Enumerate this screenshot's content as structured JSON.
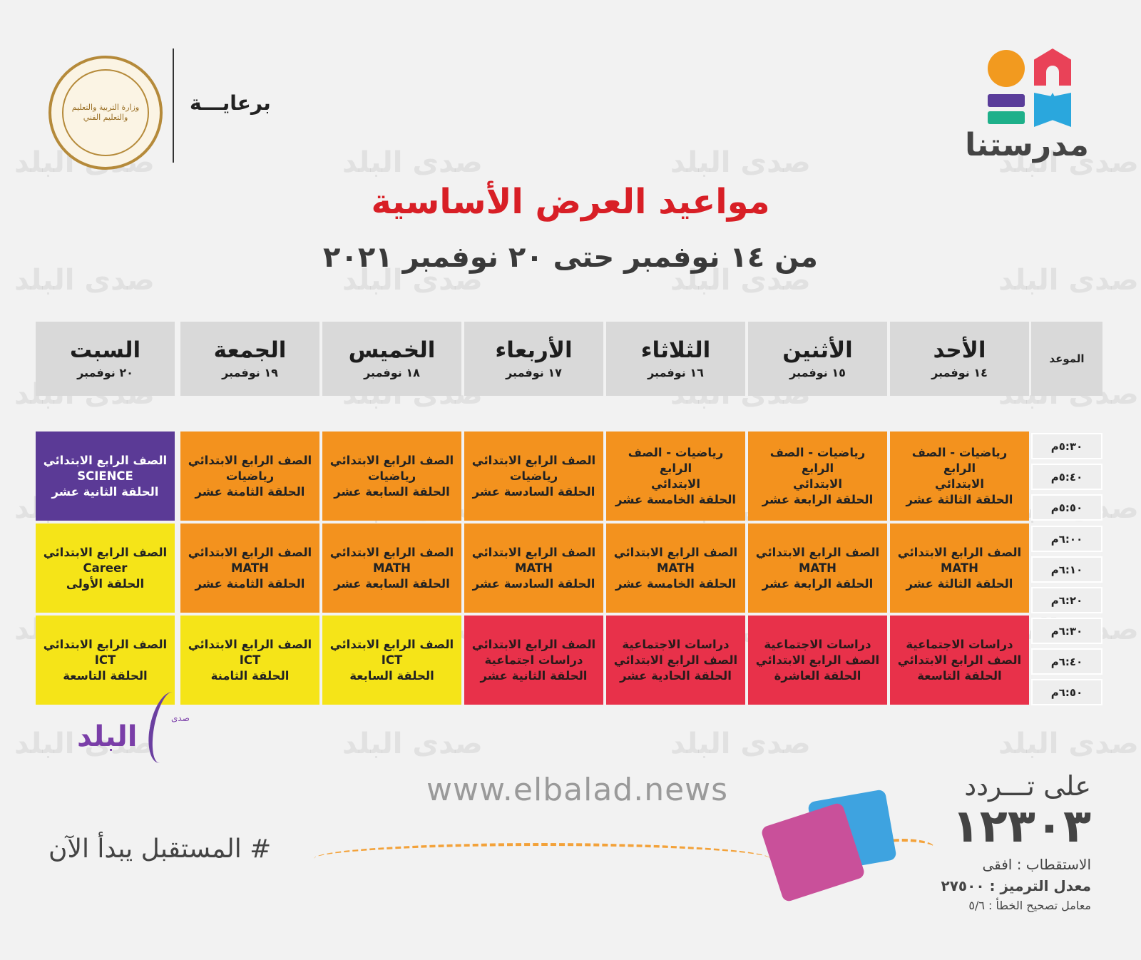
{
  "sponsor": {
    "label": "برعايـــة",
    "seal_text": "وزارة التربية والتعليم والتعليم الفني"
  },
  "brand": {
    "name": "مدرستنا"
  },
  "watermark": {
    "text": "صدى البلد"
  },
  "header": {
    "title": "مواعيد العرض الأساسية",
    "subtitle": "من ١٤ نوفمبر حتى ٢٠ نوفمبر ٢٠٢١"
  },
  "table": {
    "time_header": "الموعد",
    "days": [
      {
        "name": "الأحد",
        "date": "١٤ نوفمبر"
      },
      {
        "name": "الأثنين",
        "date": "١٥ نوفمبر"
      },
      {
        "name": "الثلاثاء",
        "date": "١٦ نوفمبر"
      },
      {
        "name": "الأربعاء",
        "date": "١٧ نوفمبر"
      },
      {
        "name": "الخميس",
        "date": "١٨ نوفمبر"
      },
      {
        "name": "الجمعة",
        "date": "١٩ نوفمبر"
      },
      {
        "name": "السبت",
        "date": "٢٠ نوفمبر"
      }
    ],
    "times": [
      "٥:٣٠م",
      "٥:٤٠م",
      "٥:٥٠م",
      "٦:٠٠م",
      "٦:١٠م",
      "٦:٢٠م",
      "٦:٣٠م",
      "٦:٤٠م",
      "٦:٥٠م"
    ],
    "blocks": [
      [
        {
          "color": "orange",
          "lines": [
            "رياضيات - الصف الرابع",
            "الابتدائي",
            "الحلقة الثالثة عشر"
          ]
        },
        {
          "color": "orange",
          "lines": [
            "رياضيات - الصف الرابع",
            "الابتدائي",
            "الحلقة الرابعة عشر"
          ]
        },
        {
          "color": "orange",
          "lines": [
            "رياضيات - الصف الرابع",
            "الابتدائي",
            "الحلقة الخامسة عشر"
          ]
        },
        {
          "color": "orange",
          "lines": [
            "الصف الرابع الابتدائي",
            "رياضيات",
            "الحلقة السادسة عشر"
          ]
        },
        {
          "color": "orange",
          "lines": [
            "الصف الرابع الابتدائي",
            "رياضيات",
            "الحلقة السابعة عشر"
          ]
        },
        {
          "color": "orange",
          "lines": [
            "الصف الرابع الابتدائي",
            "رياضيات",
            "الحلقة الثامنة عشر"
          ]
        },
        {
          "color": "purple",
          "lines": [
            "الصف الرابع الابتدائي",
            "SCIENCE",
            "الحلقة الثانية عشر"
          ]
        }
      ],
      [
        {
          "color": "orange",
          "lines": [
            "الصف الرابع الابتدائي",
            "MATH",
            "الحلقة الثالثة عشر"
          ]
        },
        {
          "color": "orange",
          "lines": [
            "الصف الرابع الابتدائي",
            "MATH",
            "الحلقة الرابعة عشر"
          ]
        },
        {
          "color": "orange",
          "lines": [
            "الصف الرابع الابتدائي",
            "MATH",
            "الحلقة الخامسة عشر"
          ]
        },
        {
          "color": "orange",
          "lines": [
            "الصف الرابع الابتدائي",
            "MATH",
            "الحلقة السادسة عشر"
          ]
        },
        {
          "color": "orange",
          "lines": [
            "الصف الرابع الابتدائي",
            "MATH",
            "الحلقة السابعة عشر"
          ]
        },
        {
          "color": "orange",
          "lines": [
            "الصف الرابع الابتدائي",
            "MATH",
            "الحلقة الثامنة عشر"
          ]
        },
        {
          "color": "yellow",
          "lines": [
            "الصف الرابع الابتدائي",
            "Career",
            "الحلقة الأولى"
          ]
        }
      ],
      [
        {
          "color": "red",
          "lines": [
            "دراسات الاجتماعية",
            "الصف الرابع الابتدائي",
            "الحلقة التاسعة"
          ]
        },
        {
          "color": "red",
          "lines": [
            "دراسات الاجتماعية",
            "الصف الرابع الابتدائي",
            "الحلقة العاشرة"
          ]
        },
        {
          "color": "red",
          "lines": [
            "دراسات الاجتماعية",
            "الصف الرابع الابتدائي",
            "الحلقة الحادية عشر"
          ]
        },
        {
          "color": "red",
          "lines": [
            "الصف الرابع الابتدائي",
            "دراسات اجتماعية",
            "الحلقة الثانية عشر"
          ]
        },
        {
          "color": "yellow",
          "lines": [
            "الصف الرابع الابتدائي",
            "ICT",
            "الحلقة السابعة"
          ]
        },
        {
          "color": "yellow",
          "lines": [
            "الصف الرابع الابتدائي",
            "ICT",
            "الحلقة الثامنة"
          ]
        },
        {
          "color": "yellow",
          "lines": [
            "الصف الرابع الابتدائي",
            "ICT",
            "الحلقة التاسعة"
          ]
        }
      ]
    ]
  },
  "news_logo": {
    "word": "البلد",
    "small": "صدى"
  },
  "footer": {
    "url": "www.elbalad.news",
    "slogan": "# المستقبل يبدأ الآن",
    "freq_label": "على تـــردد",
    "freq_value": "١٢٣٠٣",
    "polarization": "الاستقطاب : افقى",
    "symbol_rate": "معدل الترميز : ٢٧٥٠٠",
    "fec": "معامل تصحيح الخطأ : ٥/٦"
  },
  "colors": {
    "title": "#d81f26",
    "orange": "#f3921e",
    "yellow": "#f5e418",
    "red": "#e8314a",
    "purple": "#5b3a96",
    "header_bg": "#d9d9d9"
  }
}
